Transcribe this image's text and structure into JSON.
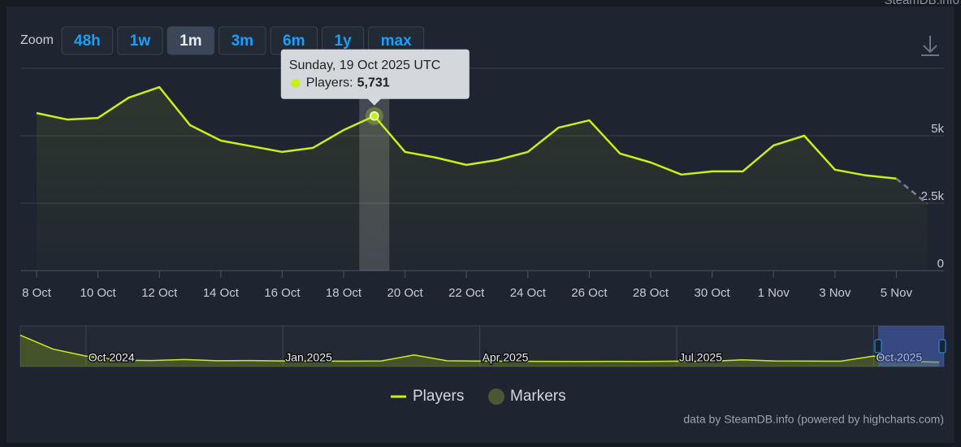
{
  "chart_data": [
    {
      "type": "line",
      "watermark": "SteamDB.info",
      "zoom": {
        "label": "Zoom",
        "options": [
          "48h",
          "1w",
          "1m",
          "3m",
          "6m",
          "1y",
          "max"
        ],
        "active_option": 2
      },
      "categories": [
        "8 Oct",
        null,
        "10 Oct",
        null,
        "12 Oct",
        null,
        "14 Oct",
        null,
        "16 Oct",
        null,
        "18 Oct",
        null,
        "20 Oct",
        null,
        "22 Oct",
        null,
        "24 Oct",
        null,
        "26 Oct",
        null,
        "28 Oct",
        null,
        "30 Oct",
        null,
        "1 Nov",
        null,
        "3 Nov",
        null,
        "5 Nov",
        null
      ],
      "series": [
        {
          "name": "Players",
          "color": "#c6f018",
          "values": [
            5840,
            5600,
            5660,
            6410,
            6800,
            5390,
            4820,
            4610,
            4400,
            4550,
            5210,
            5731,
            4400,
            4190,
            3920,
            4100,
            4400,
            5300,
            5570,
            4340,
            4010,
            3560,
            3680,
            3680,
            4640,
            5000,
            3740,
            3530,
            3410,
            2490
          ]
        }
      ],
      "dash_last_segment": true,
      "ylim": [
        0,
        7500
      ],
      "yticks": [
        0,
        {
          "value": 2500,
          "label": "2.5k"
        },
        {
          "value": 5000,
          "label": "5k"
        }
      ],
      "grid": true,
      "tooltip": {
        "title": "Sunday, 19 Oct 2025 UTC",
        "series_label": "Players:",
        "value": 5731,
        "value_label": "5,731"
      },
      "markers_legend": {
        "name": "Markers",
        "color": "#4b5632"
      },
      "credits": "data by SteamDB.info (powered by highcharts.com)"
    },
    {
      "type": "navigator",
      "categories": [
        null,
        null,
        "Oct 2024",
        null,
        null,
        null,
        null,
        null,
        "Jan 2025",
        null,
        null,
        null,
        null,
        null,
        "Apr 2025",
        null,
        null,
        null,
        null,
        null,
        "Jul 2025",
        null,
        null,
        null,
        null,
        null,
        "Oct 2025",
        null,
        null
      ],
      "values": [
        27000,
        15000,
        9000,
        5500,
        5200,
        6000,
        5000,
        5200,
        4800,
        4700,
        4600,
        4800,
        10000,
        5000,
        4700,
        4600,
        4500,
        4400,
        4500,
        4400,
        4600,
        4500,
        5800,
        4800,
        4700,
        4600,
        9000,
        4500,
        3800
      ],
      "color": "#c6f018",
      "ylim": [
        0,
        35000
      ]
    }
  ]
}
